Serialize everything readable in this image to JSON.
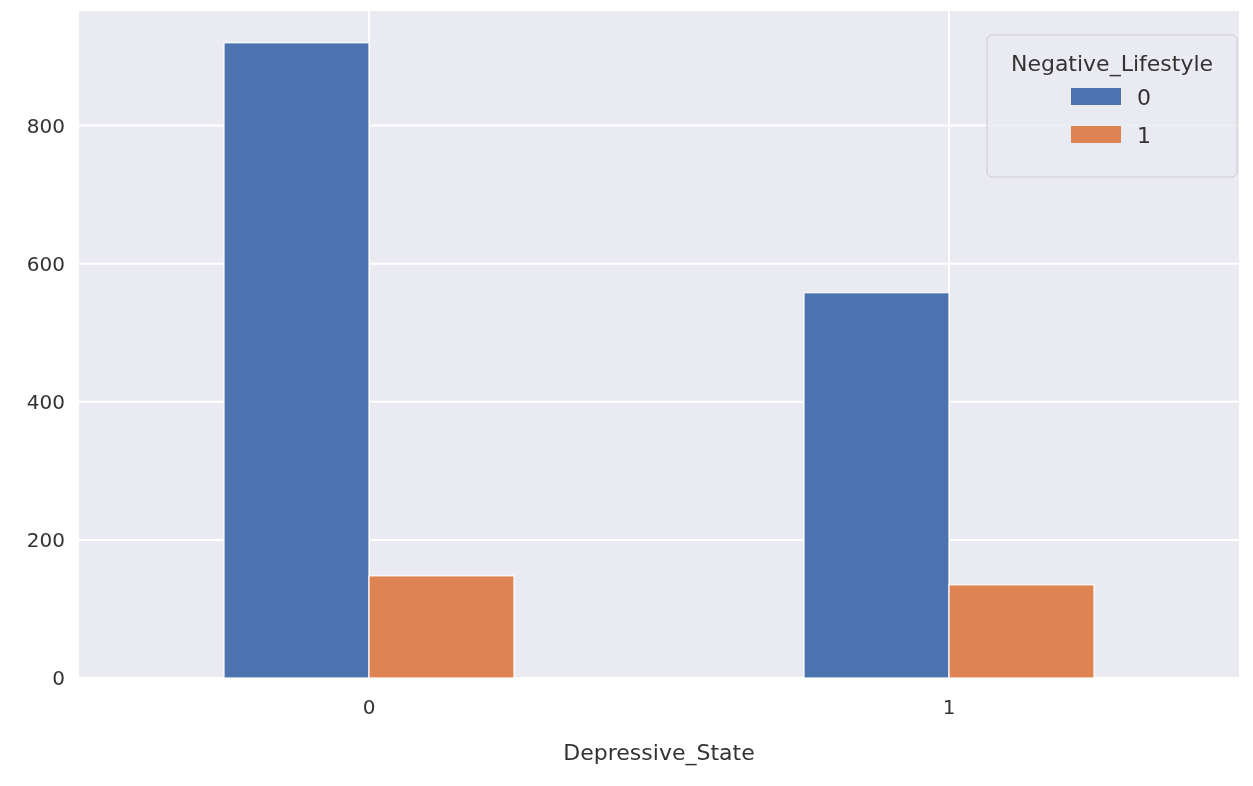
{
  "chart_data": {
    "type": "bar",
    "xlabel": "Depressive_State",
    "legend_title": "Negative_Lifestyle",
    "categories": [
      "0",
      "1"
    ],
    "series": [
      {
        "name": "0",
        "color": "#4c72b0",
        "values": [
          920,
          558
        ]
      },
      {
        "name": "1",
        "color": "#dd8452",
        "values": [
          148,
          135
        ]
      }
    ],
    "ylim": [
      0,
      966
    ],
    "yticks": [
      0,
      200,
      400,
      600,
      800
    ],
    "grid": true,
    "legend": "top right"
  }
}
